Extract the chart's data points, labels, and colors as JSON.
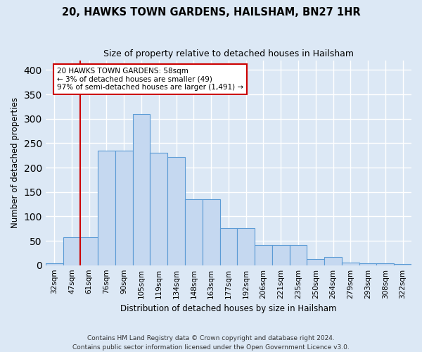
{
  "title": "20, HAWKS TOWN GARDENS, HAILSHAM, BN27 1HR",
  "subtitle": "Size of property relative to detached houses in Hailsham",
  "xlabel": "Distribution of detached houses by size in Hailsham",
  "ylabel": "Number of detached properties",
  "bar_color": "#c5d8f0",
  "bar_edge_color": "#5b9bd5",
  "categories": [
    "32sqm",
    "47sqm",
    "61sqm",
    "76sqm",
    "90sqm",
    "105sqm",
    "119sqm",
    "134sqm",
    "148sqm",
    "163sqm",
    "177sqm",
    "192sqm",
    "206sqm",
    "221sqm",
    "235sqm",
    "250sqm",
    "264sqm",
    "279sqm",
    "293sqm",
    "308sqm",
    "322sqm"
  ],
  "values": [
    4,
    57,
    57,
    235,
    235,
    310,
    230,
    222,
    135,
    135,
    76,
    76,
    42,
    42,
    42,
    12,
    17,
    6,
    4,
    4,
    3
  ],
  "annotation_text": "20 HAWKS TOWN GARDENS: 58sqm\n← 3% of detached houses are smaller (49)\n97% of semi-detached houses are larger (1,491) →",
  "vline_x": 1.5,
  "annotation_box_color": "#ffffff",
  "annotation_box_edge": "#cc0000",
  "vline_color": "#cc0000",
  "footer1": "Contains HM Land Registry data © Crown copyright and database right 2024.",
  "footer2": "Contains public sector information licensed under the Open Government Licence v3.0.",
  "background_color": "#dce8f5",
  "grid_color": "#ffffff",
  "ylim": [
    0,
    420
  ]
}
